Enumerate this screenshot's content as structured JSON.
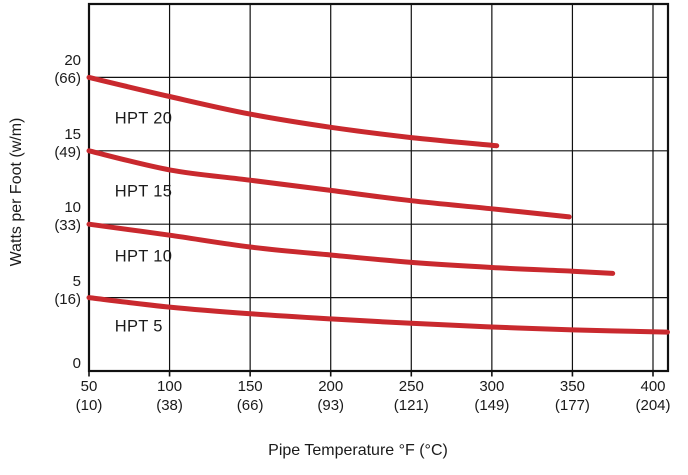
{
  "chart_data": {
    "type": "line",
    "title": "",
    "xlabel": "Pipe Temperature °F (°C)",
    "ylabel": "Watts per Foot (w/m)",
    "grid": true,
    "x_axis": {
      "min": 50,
      "max": 409,
      "gridline_step": 50,
      "ticks": [
        {
          "value": 50,
          "label": "50",
          "paren": "(10)"
        },
        {
          "value": 100,
          "label": "100",
          "paren": "(38)"
        },
        {
          "value": 150,
          "label": "150",
          "paren": "(66)"
        },
        {
          "value": 200,
          "label": "200",
          "paren": "(93)"
        },
        {
          "value": 250,
          "label": "250",
          "paren": "(121)"
        },
        {
          "value": 300,
          "label": "300",
          "paren": "(149)"
        },
        {
          "value": 350,
          "label": "350",
          "paren": "(177)"
        },
        {
          "value": 400,
          "label": "400",
          "paren": "(204)"
        }
      ]
    },
    "y_axis": {
      "min": 0,
      "max": 25,
      "gridline_step": 5,
      "ticks": [
        {
          "value": 20,
          "label": "20",
          "paren": "(66)"
        },
        {
          "value": 15,
          "label": "15",
          "paren": "(49)"
        },
        {
          "value": 10,
          "label": "10",
          "paren": "(33)"
        },
        {
          "value": 5,
          "label": "5",
          "paren": "(16)"
        },
        {
          "value": 0,
          "label": "0",
          "paren": ""
        }
      ]
    },
    "series": [
      {
        "name": "HPT 20",
        "label_at": [
          66,
          17.15
        ],
        "points": [
          [
            50,
            20.0
          ],
          [
            100,
            18.7
          ],
          [
            150,
            17.5
          ],
          [
            200,
            16.6
          ],
          [
            250,
            15.9
          ],
          [
            303,
            15.35
          ]
        ]
      },
      {
        "name": "HPT 15",
        "label_at": [
          66,
          12.2
        ],
        "points": [
          [
            50,
            15.0
          ],
          [
            100,
            13.7
          ],
          [
            150,
            13.0
          ],
          [
            200,
            12.3
          ],
          [
            250,
            11.6
          ],
          [
            300,
            11.05
          ],
          [
            348,
            10.5
          ]
        ]
      },
      {
        "name": "HPT 10",
        "label_at": [
          66,
          7.75
        ],
        "points": [
          [
            50,
            10.0
          ],
          [
            100,
            9.25
          ],
          [
            150,
            8.45
          ],
          [
            200,
            7.9
          ],
          [
            250,
            7.4
          ],
          [
            300,
            7.05
          ],
          [
            350,
            6.8
          ],
          [
            375,
            6.65
          ]
        ]
      },
      {
        "name": "HPT 5",
        "label_at": [
          66,
          3.0
        ],
        "points": [
          [
            50,
            5.0
          ],
          [
            100,
            4.35
          ],
          [
            150,
            3.9
          ],
          [
            200,
            3.55
          ],
          [
            250,
            3.25
          ],
          [
            300,
            3.0
          ],
          [
            350,
            2.8
          ],
          [
            409,
            2.65
          ]
        ]
      }
    ],
    "colors": {
      "curve_red": "#c9292e",
      "grid_line": "#111111",
      "text": "#1a1a1a",
      "background": "#ffffff"
    }
  }
}
